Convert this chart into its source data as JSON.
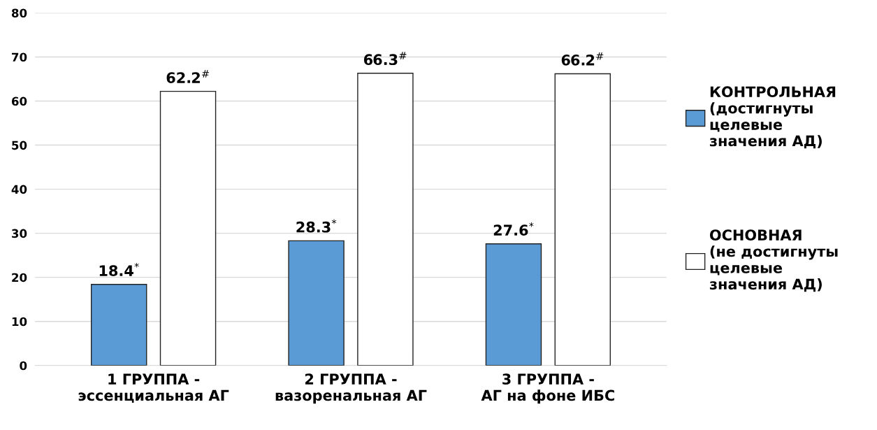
{
  "chart_data": {
    "type": "bar",
    "categories": [
      "1 ГРУППА -\nэссенциальная АГ",
      "2 ГРУППА -\nвазоренальная АГ",
      "3 ГРУППА -\nАГ на фоне ИБС"
    ],
    "series": [
      {
        "name": "КОНТРОЛЬНАЯ\n(достигнуты\nцелевые\nзначения АД)",
        "color": "#5b9bd5",
        "values": [
          18.4,
          28.3,
          27.6
        ],
        "value_labels": [
          "18.4$^{*}$",
          "28.3$^{*}$",
          "27.6$^{*}$"
        ]
      },
      {
        "name": "ОСНОВНАЯ\n(не достигнуты\nцелевые\nзначения АД)",
        "color": "#ffffff",
        "values": [
          62.2,
          66.3,
          66.2
        ],
        "value_labels": [
          "62.2$^{#}$",
          "66.3$^{#}$",
          "66.2$^{#}$"
        ]
      }
    ],
    "ylim": [
      0,
      80
    ],
    "yticks": [
      0,
      10,
      20,
      30,
      40,
      50,
      60,
      70,
      80
    ],
    "grid": "y",
    "legend": "right"
  }
}
